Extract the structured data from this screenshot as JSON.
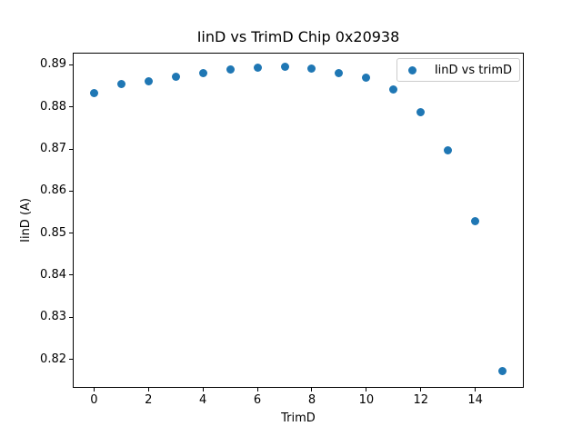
{
  "figure": {
    "background": "#ffffff"
  },
  "chart_data": {
    "type": "scatter",
    "title": "IinD vs TrimD Chip 0x20938",
    "xlabel": "TrimD",
    "ylabel": "IinD (A)",
    "legend": {
      "label": "IinD vs trimD",
      "position": "upper right"
    },
    "marker_color": "#1f77b4",
    "grid": false,
    "xlim": [
      -0.78,
      15.78
    ],
    "ylim": [
      0.8132,
      0.8929
    ],
    "xticks": [
      0,
      2,
      4,
      6,
      8,
      10,
      12,
      14
    ],
    "yticks": [
      0.82,
      0.83,
      0.84,
      0.85,
      0.86,
      0.87,
      0.88,
      0.89
    ],
    "ytick_labels": [
      "0.82",
      "0.83",
      "0.84",
      "0.85",
      "0.86",
      "0.87",
      "0.88",
      "0.89"
    ],
    "series": [
      {
        "name": "IinD vs trimD",
        "x": [
          0,
          1,
          2,
          3,
          4,
          5,
          6,
          7,
          8,
          9,
          10,
          11,
          12,
          13,
          14,
          15
        ],
        "y": [
          0.8833,
          0.8854,
          0.8861,
          0.8871,
          0.8881,
          0.8889,
          0.8893,
          0.8895,
          0.8892,
          0.8881,
          0.8869,
          0.8842,
          0.8788,
          0.8696,
          0.8529,
          0.8173
        ]
      }
    ]
  }
}
